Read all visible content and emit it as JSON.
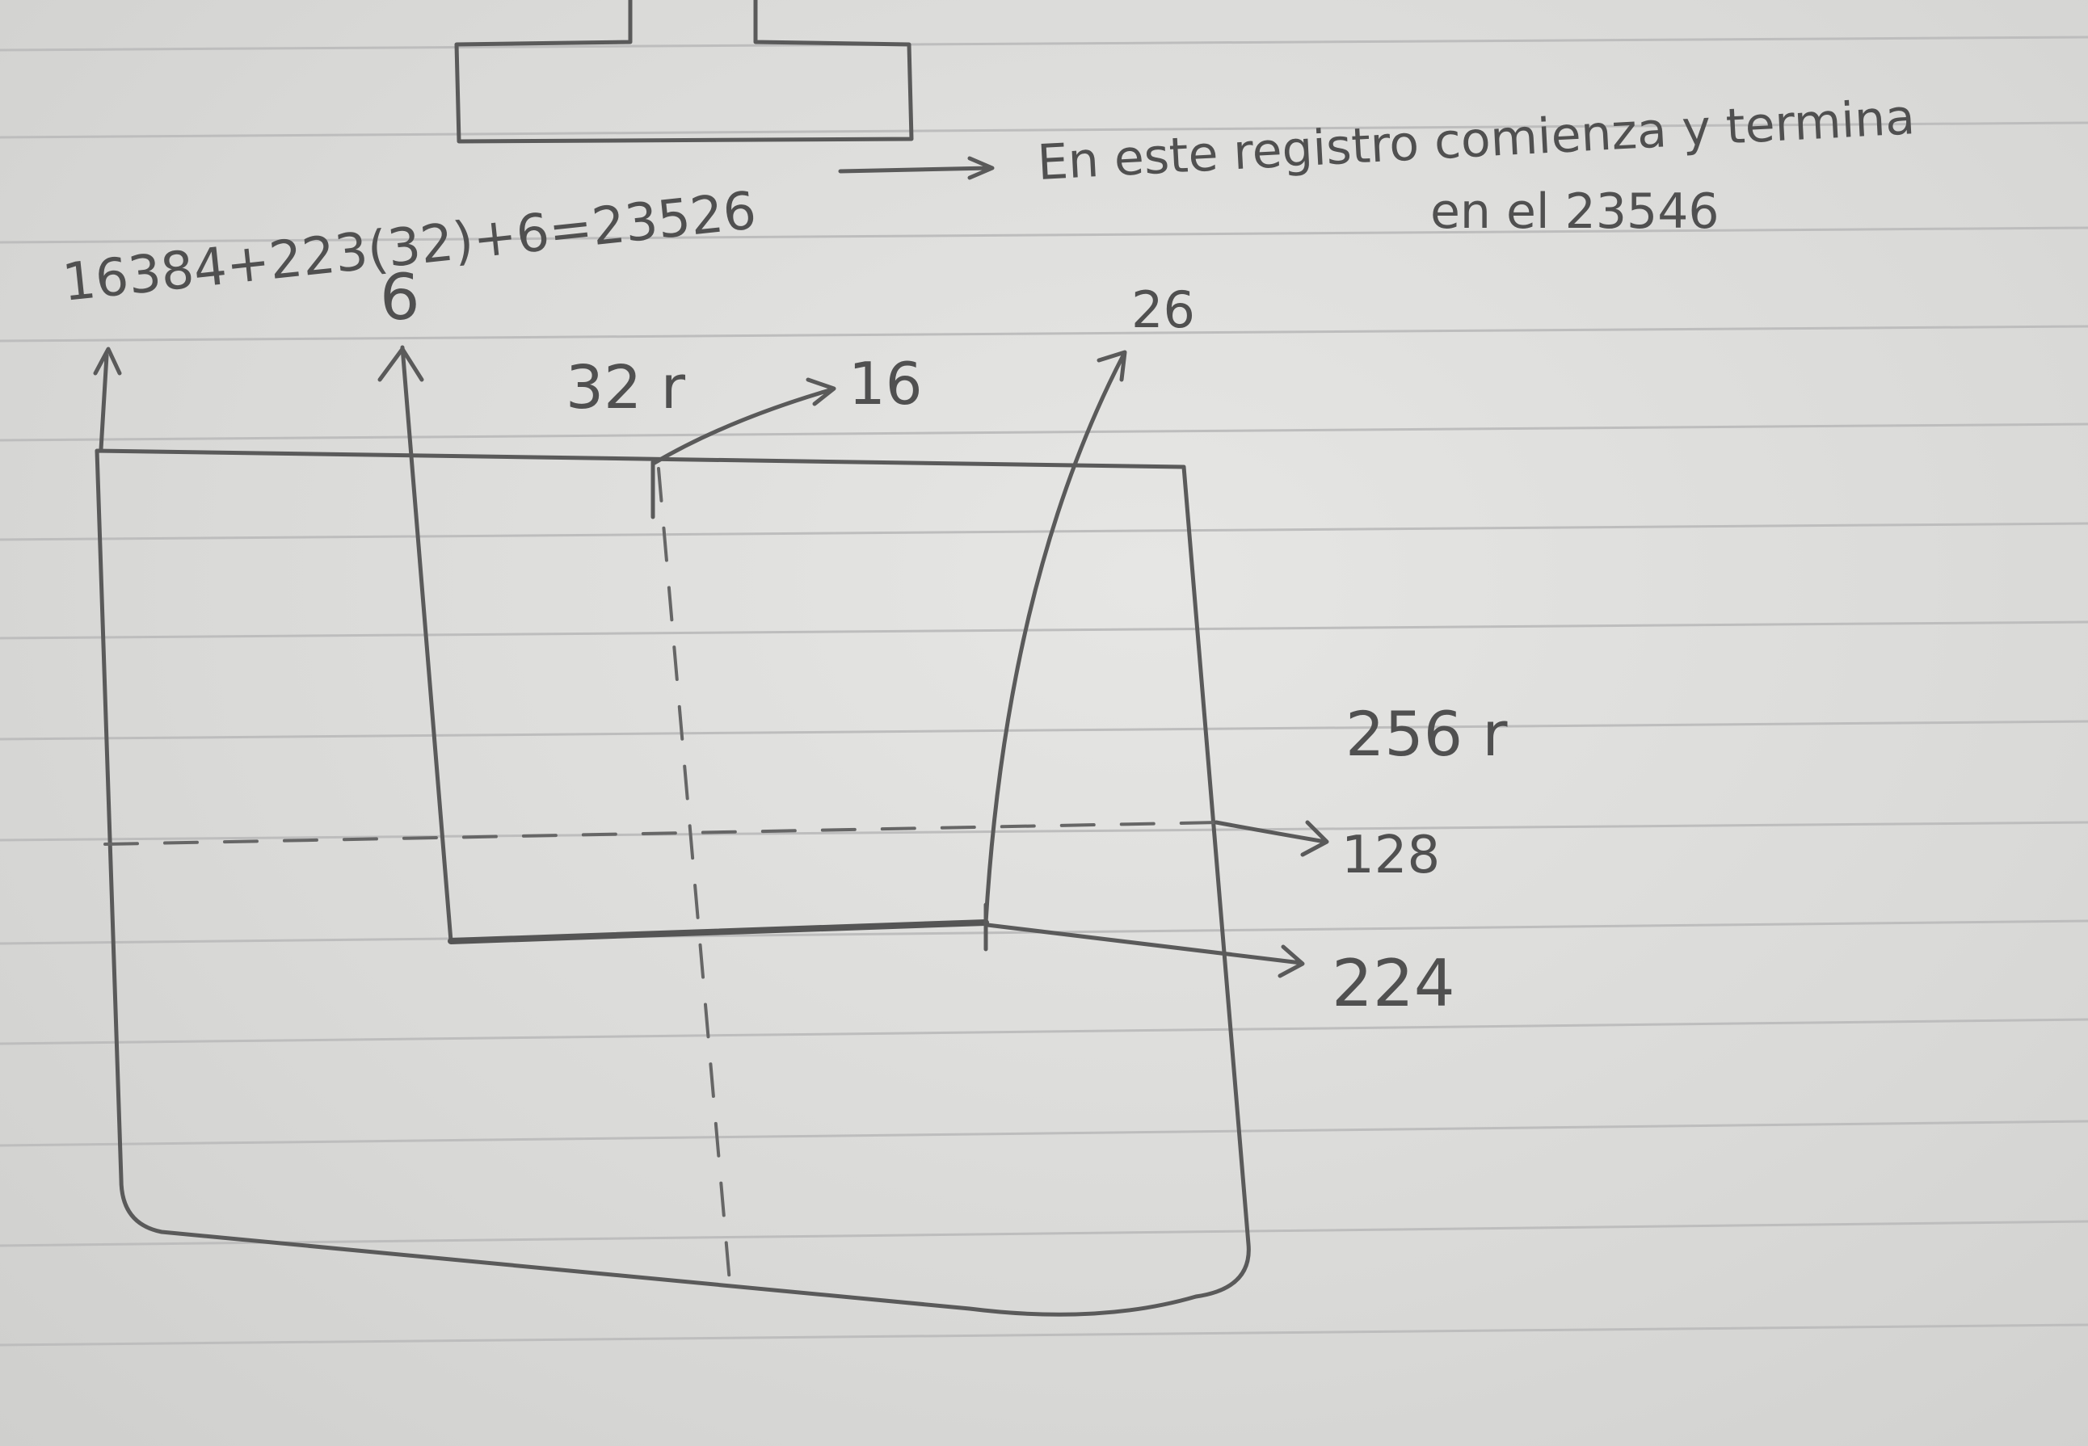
{
  "formula": "16384+223(32)+6=23526",
  "note_line1": "En este registro comienza y termina",
  "note_line2": "en el 23546",
  "labels": {
    "offset_left": "6",
    "offset_right": "26",
    "block_size": "32 r",
    "half_block": "16",
    "total_size": "256 r",
    "half_total": "128",
    "end_value": "224"
  },
  "colors": {
    "paper": "#dcdcdc",
    "ruled_line": "#bdbdbd",
    "pencil": "#555555"
  }
}
